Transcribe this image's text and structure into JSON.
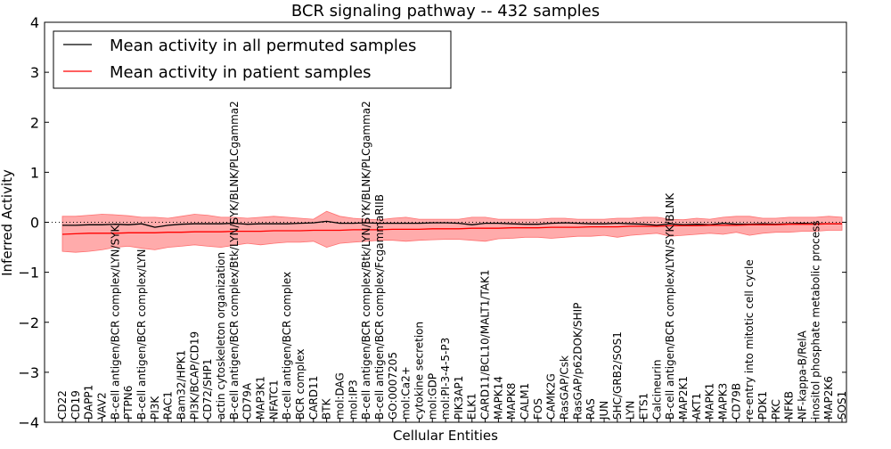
{
  "chart_data": {
    "type": "line",
    "title": "BCR signaling pathway -- 432 samples",
    "xlabel": "Cellular Entities",
    "ylabel": "Inferred Activity",
    "ylim": [
      -4,
      4
    ],
    "yticks": [
      4,
      3,
      2,
      1,
      0,
      -1,
      -2,
      -3,
      -4
    ],
    "ytick_labels": [
      "4",
      "3",
      "2",
      "1",
      "0",
      "−1",
      "−2",
      "−3",
      "−4"
    ],
    "reference_line": 0,
    "grid": false,
    "legend": {
      "location": "top-left",
      "entries": [
        {
          "label": "Mean activity in all permuted samples",
          "color": "#000000"
        },
        {
          "label": "Mean activity in patient samples",
          "color": "#ff0000"
        }
      ]
    },
    "categories": [
      "CD22",
      "CD19",
      "DAPP1",
      "VAV2",
      "B-cell antigen/BCR complex/LYN/SYK",
      "PTPN6",
      "B-cell antigen/BCR complex/LYN",
      "PI3K",
      "RAC1",
      "Bam32/HPK1",
      "PI3K/BCAP/CD19",
      "CD72/SHP1",
      "actin cytoskeleton organization",
      "B-cell antigen/BCR complex/Btk/LYN/SYK/BLNK/PLCgamma2",
      "CD79A",
      "MAP3K1",
      "NFATC1",
      "B-cell antigen/BCR complex",
      "BCR complex",
      "CARD11",
      "BTK",
      "mol:DAG",
      "mol:IP3",
      "B-cell antigen/BCR complex/Btk/LYN/SYK/BLNK/PLCgamma2",
      "B-cell antigen/BCR complex/FcgammaRIIB",
      "GO:0007205",
      "mol:Ca2+",
      "cytokine secretion",
      "mol:GDP",
      "mol:PI-3-4-5-P3",
      "PIK3AP1",
      "ELK1",
      "CARD11/BCL10/MALT1/TAK1",
      "MAPK14",
      "MAPK8",
      "CALM1",
      "FOS",
      "CAMK2G",
      "RasGAP/Csk",
      "RasGAP/p62DOK/SHIP",
      "RAS",
      "JUN",
      "SHC/GRB2/SOS1",
      "LYN",
      "ETS1",
      "Calcineurin",
      "B-cell antigen/BCR complex/LYN/SYK/BLNK",
      "MAP2K1",
      "AKT1",
      "MAPK1",
      "MAPK3",
      "CD79B",
      "re-entry into mitotic cell cycle",
      "PDK1",
      "PKC",
      "NFKB",
      "NF-kappa-B/RelA",
      "inositol phosphate metabolic process",
      "MAP2K6",
      "SOS1"
    ],
    "series": [
      {
        "name": "Mean activity in all permuted samples",
        "color": "#000000",
        "values": [
          -0.06,
          -0.06,
          -0.05,
          -0.05,
          -0.04,
          -0.05,
          -0.03,
          -0.1,
          -0.06,
          -0.04,
          -0.03,
          -0.03,
          -0.03,
          -0.02,
          -0.04,
          -0.03,
          -0.03,
          -0.03,
          -0.02,
          -0.01,
          0.02,
          -0.02,
          -0.02,
          -0.01,
          -0.02,
          -0.02,
          -0.02,
          -0.02,
          -0.01,
          -0.01,
          -0.02,
          -0.05,
          -0.02,
          -0.02,
          -0.03,
          -0.04,
          -0.04,
          -0.02,
          -0.01,
          -0.02,
          -0.03,
          -0.03,
          -0.02,
          -0.03,
          -0.04,
          -0.06,
          -0.03,
          -0.05,
          -0.04,
          -0.05,
          -0.02,
          -0.04,
          -0.04,
          -0.03,
          -0.04,
          -0.03,
          -0.02,
          -0.03,
          -0.03,
          -0.03
        ]
      },
      {
        "name": "Mean activity in patient samples",
        "color": "#ff0000",
        "values": [
          -0.24,
          -0.23,
          -0.22,
          -0.22,
          -0.22,
          -0.21,
          -0.21,
          -0.21,
          -0.2,
          -0.2,
          -0.19,
          -0.19,
          -0.19,
          -0.18,
          -0.18,
          -0.18,
          -0.17,
          -0.17,
          -0.17,
          -0.16,
          -0.16,
          -0.16,
          -0.15,
          -0.15,
          -0.15,
          -0.14,
          -0.14,
          -0.14,
          -0.13,
          -0.13,
          -0.13,
          -0.12,
          -0.12,
          -0.12,
          -0.11,
          -0.11,
          -0.11,
          -0.1,
          -0.1,
          -0.1,
          -0.09,
          -0.09,
          -0.09,
          -0.08,
          -0.08,
          -0.08,
          -0.07,
          -0.07,
          -0.07,
          -0.06,
          -0.06,
          -0.06,
          -0.05,
          -0.05,
          -0.05,
          -0.04,
          -0.04,
          -0.04,
          -0.03,
          -0.03
        ]
      },
      {
        "name": "Patient samples band upper",
        "color": "#ff9999",
        "values": [
          0.12,
          0.12,
          0.14,
          0.16,
          0.15,
          0.13,
          0.1,
          0.1,
          0.08,
          0.12,
          0.16,
          0.14,
          0.1,
          0.1,
          0.08,
          0.1,
          0.12,
          0.1,
          0.08,
          0.06,
          0.22,
          0.12,
          0.08,
          0.06,
          0.05,
          0.08,
          0.1,
          0.06,
          0.06,
          0.06,
          0.06,
          0.1,
          0.1,
          0.06,
          0.06,
          0.06,
          0.06,
          0.08,
          0.08,
          0.06,
          0.06,
          0.06,
          0.08,
          0.08,
          0.1,
          0.1,
          0.06,
          0.05,
          0.08,
          0.06,
          0.1,
          0.12,
          0.12,
          0.08,
          0.08,
          0.1,
          0.1,
          0.1,
          0.12,
          0.1
        ]
      },
      {
        "name": "Patient samples band lower",
        "color": "#ff9999",
        "values": [
          -0.58,
          -0.6,
          -0.58,
          -0.55,
          -0.5,
          -0.48,
          -0.52,
          -0.55,
          -0.5,
          -0.48,
          -0.45,
          -0.48,
          -0.5,
          -0.46,
          -0.42,
          -0.45,
          -0.42,
          -0.4,
          -0.4,
          -0.38,
          -0.5,
          -0.42,
          -0.4,
          -0.38,
          -0.36,
          -0.36,
          -0.38,
          -0.36,
          -0.35,
          -0.34,
          -0.34,
          -0.36,
          -0.38,
          -0.33,
          -0.32,
          -0.3,
          -0.3,
          -0.32,
          -0.3,
          -0.28,
          -0.28,
          -0.26,
          -0.3,
          -0.26,
          -0.24,
          -0.22,
          -0.28,
          -0.26,
          -0.24,
          -0.22,
          -0.24,
          -0.2,
          -0.26,
          -0.22,
          -0.2,
          -0.2,
          -0.18,
          -0.18,
          -0.16,
          -0.16
        ]
      }
    ]
  }
}
